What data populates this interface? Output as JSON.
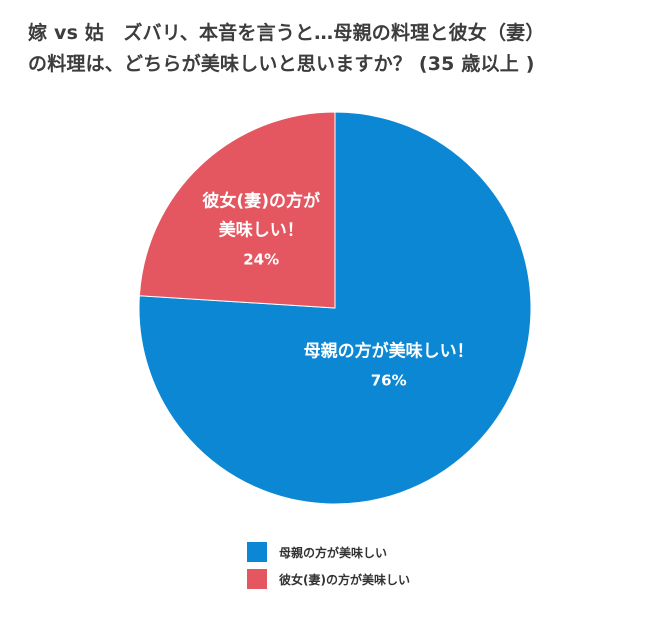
{
  "title": {
    "line1": "嫁 vs 姑　ズバリ、本音を言うと…母親の料理と彼女（妻）",
    "line2": "の料理は、どちらが美味しいと思いますか？ (35 歳以上 )"
  },
  "colors": {
    "mother": "#0b87d3",
    "partner": "#e45761",
    "label_text": "#ffffff",
    "legend_text": "#333333"
  },
  "chart_data": {
    "type": "pie",
    "title": "嫁 vs 姑　ズバリ、本音を言うと…母親の料理と彼女（妻）の料理は、どちらが美味しいと思いますか？ (35 歳以上 )",
    "slices": [
      {
        "name": "母親の方が美味しい",
        "label_lines": [
          "母親の方が美味しい！",
          "76%"
        ],
        "value": 76,
        "color": "#0b87d3"
      },
      {
        "name": "彼女(妻)の方が美味しい",
        "label_lines": [
          "彼女(妻)の方が",
          "美味しい！",
          "24%"
        ],
        "value": 24,
        "color": "#e45761"
      }
    ],
    "start_angle_deg": 0,
    "direction": "clockwise",
    "legend_position": "bottom"
  },
  "legend": {
    "items": [
      {
        "label": "母親の方が美味しい",
        "color": "#0b87d3"
      },
      {
        "label": "彼女(妻)の方が美味しい",
        "color": "#e45761"
      }
    ]
  }
}
